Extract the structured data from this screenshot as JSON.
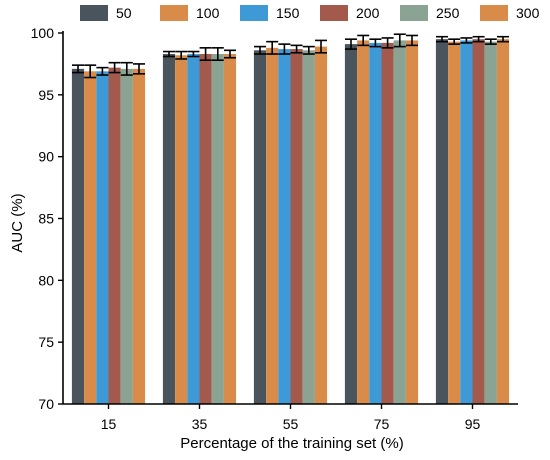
{
  "chart_data": {
    "type": "bar",
    "title": "",
    "xlabel": "Percentage of the training set (%)",
    "ylabel": "AUC (%)",
    "categories": [
      "15",
      "35",
      "55",
      "75",
      "95"
    ],
    "ylim": [
      70,
      100
    ],
    "yticks": [
      70,
      75,
      80,
      85,
      90,
      95,
      100
    ],
    "grid": false,
    "legend": {
      "placement": "top",
      "orientation": "horizontal"
    },
    "series": [
      {
        "name": "50",
        "color": "#4a545c",
        "values": [
          97.1,
          98.3,
          98.6,
          99.1,
          99.5
        ],
        "error": [
          0.3,
          0.2,
          0.3,
          0.4,
          0.2
        ]
      },
      {
        "name": "100",
        "color": "#d98c4a",
        "values": [
          96.9,
          98.2,
          98.8,
          99.4,
          99.3
        ],
        "error": [
          0.5,
          0.3,
          0.5,
          0.4,
          0.2
        ]
      },
      {
        "name": "150",
        "color": "#3d9ad6",
        "values": [
          96.9,
          98.3,
          98.7,
          99.2,
          99.4
        ],
        "error": [
          0.3,
          0.2,
          0.4,
          0.3,
          0.2
        ]
      },
      {
        "name": "200",
        "color": "#a35a4d",
        "values": [
          97.2,
          98.3,
          98.7,
          99.2,
          99.5
        ],
        "error": [
          0.4,
          0.5,
          0.3,
          0.4,
          0.2
        ]
      },
      {
        "name": "250",
        "color": "#8aa393",
        "values": [
          97.1,
          98.3,
          98.6,
          99.4,
          99.3
        ],
        "error": [
          0.5,
          0.5,
          0.3,
          0.5,
          0.2
        ]
      },
      {
        "name": "300",
        "color": "#d98c4a",
        "values": [
          97.1,
          98.3,
          98.9,
          99.4,
          99.5
        ],
        "error": [
          0.4,
          0.3,
          0.5,
          0.4,
          0.2
        ]
      }
    ]
  }
}
